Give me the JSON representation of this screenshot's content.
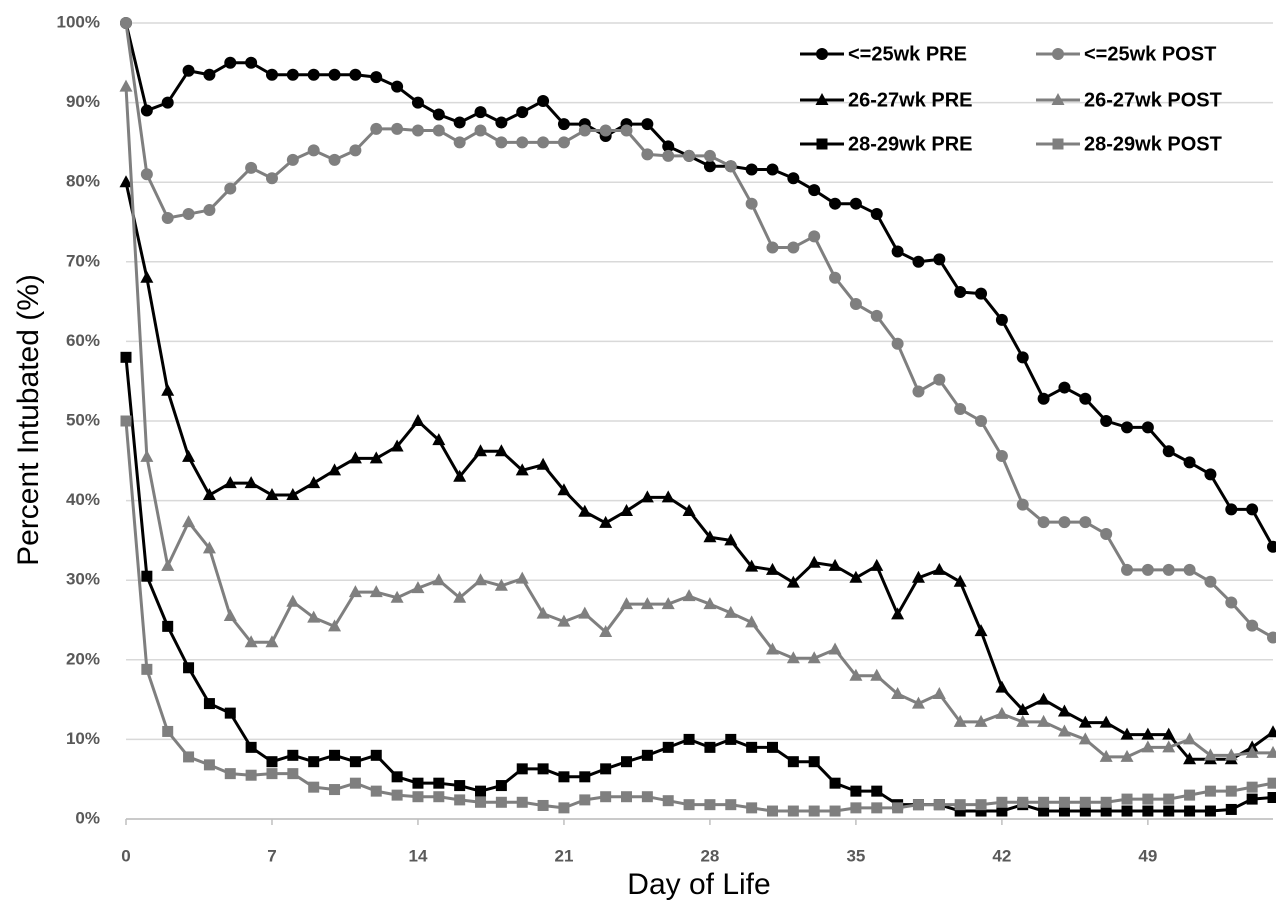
{
  "chart_data": {
    "type": "line",
    "xlabel": "Day of Life",
    "ylabel": "Percent Intubated (%)",
    "x": [
      0,
      1,
      2,
      3,
      4,
      5,
      6,
      7,
      8,
      9,
      10,
      11,
      12,
      13,
      14,
      15,
      16,
      17,
      18,
      19,
      20,
      21,
      22,
      23,
      24,
      25,
      26,
      27,
      28,
      29,
      30,
      31,
      32,
      33,
      34,
      35,
      36,
      37,
      38,
      39,
      40,
      41,
      42,
      43,
      44,
      45,
      46,
      47,
      48,
      49,
      50,
      51,
      52,
      53,
      54,
      55
    ],
    "xlim": [
      0,
      55
    ],
    "xticks": [
      0,
      7,
      14,
      21,
      28,
      35,
      42,
      49
    ],
    "ylim": [
      0,
      100
    ],
    "yticks": [
      {
        "value": 0,
        "label": "0%"
      },
      {
        "value": 10,
        "label": "10%"
      },
      {
        "value": 20,
        "label": "20%"
      },
      {
        "value": 30,
        "label": "30%"
      },
      {
        "value": 40,
        "label": "40%"
      },
      {
        "value": 50,
        "label": "50%"
      },
      {
        "value": 60,
        "label": "60%"
      },
      {
        "value": 70,
        "label": "70%"
      },
      {
        "value": 80,
        "label": "80%"
      },
      {
        "value": 90,
        "label": "90%"
      },
      {
        "value": 100,
        "label": "100%"
      }
    ],
    "grid": true,
    "legend": "upper right",
    "series": [
      {
        "name": "<=25wk PRE",
        "color": "#000000",
        "marker": "circle",
        "values": [
          100,
          89,
          90,
          94,
          93.5,
          95,
          95,
          93.5,
          93.5,
          93.5,
          93.5,
          93.5,
          93.2,
          92,
          90,
          88.5,
          87.5,
          88.8,
          87.5,
          88.8,
          90.2,
          87.3,
          87.3,
          85.8,
          87.3,
          87.3,
          84.5,
          83.3,
          82,
          82,
          81.6,
          81.6,
          80.5,
          79,
          77.3,
          77.3,
          76,
          71.3,
          70,
          70.3,
          66.2,
          66,
          62.7,
          58,
          52.8,
          54.2,
          52.8,
          50,
          49.2,
          49.2,
          46.2,
          44.8,
          43.3,
          38.9,
          38.9,
          34.2
        ]
      },
      {
        "name": "<=25wk POST",
        "color": "#7f7f7f",
        "marker": "circle",
        "values": [
          100,
          81,
          75.5,
          76,
          76.5,
          79.2,
          81.8,
          80.5,
          82.8,
          84,
          82.8,
          84,
          86.7,
          86.7,
          86.5,
          86.5,
          85,
          86.5,
          85,
          85,
          85,
          85,
          86.5,
          86.5,
          86.5,
          83.5,
          83.3,
          83.3,
          83.3,
          82,
          77.3,
          71.8,
          71.8,
          73.2,
          68,
          64.7,
          63.2,
          59.7,
          53.7,
          55.2,
          51.5,
          50,
          45.6,
          39.5,
          37.3,
          37.3,
          37.3,
          35.8,
          31.3,
          31.3,
          31.3,
          31.3,
          29.8,
          27.2,
          24.3,
          22.8
        ]
      },
      {
        "name": "26-27wk PRE",
        "color": "#000000",
        "marker": "triangle",
        "values": [
          80,
          68,
          53.8,
          45.5,
          40.7,
          42.2,
          42.2,
          40.7,
          40.7,
          42.2,
          43.8,
          45.3,
          45.3,
          46.8,
          50,
          47.6,
          43,
          46.2,
          46.2,
          43.8,
          44.5,
          41.3,
          38.6,
          37.2,
          38.7,
          40.4,
          40.4,
          38.7,
          35.4,
          35,
          31.7,
          31.3,
          29.7,
          32.2,
          31.8,
          30.3,
          31.8,
          25.7,
          30.3,
          31.3,
          29.8,
          23.6,
          16.5,
          13.7,
          15,
          13.5,
          12.1,
          12.1,
          10.6,
          10.6,
          10.6,
          7.5,
          7.5,
          7.5,
          9,
          10.9
        ]
      },
      {
        "name": "26-27wk POST",
        "color": "#7f7f7f",
        "marker": "triangle",
        "values": [
          92,
          45.5,
          31.8,
          37.3,
          34,
          25.5,
          22.2,
          22.2,
          27.3,
          25.3,
          24.2,
          28.5,
          28.5,
          27.8,
          29,
          30,
          27.8,
          30,
          29.3,
          30.2,
          25.8,
          24.8,
          25.8,
          23.5,
          27,
          27,
          27,
          28,
          27,
          25.9,
          24.7,
          21.3,
          20.2,
          20.2,
          21.3,
          18,
          18,
          15.7,
          14.5,
          15.7,
          12.2,
          12.2,
          13.2,
          12.2,
          12.2,
          11,
          10,
          7.8,
          7.8,
          9,
          9,
          10,
          8,
          8,
          8.3,
          8.3
        ]
      },
      {
        "name": "28-29wk PRE",
        "color": "#000000",
        "marker": "square",
        "values": [
          58,
          30.5,
          24.2,
          19,
          14.5,
          13.3,
          9,
          7.2,
          8,
          7.2,
          8,
          7.2,
          8,
          5.3,
          4.5,
          4.5,
          4.2,
          3.5,
          4.2,
          6.3,
          6.3,
          5.3,
          5.3,
          6.3,
          7.2,
          8,
          9,
          10,
          9,
          10,
          9,
          9,
          7.2,
          7.2,
          4.5,
          3.5,
          3.5,
          1.8,
          1.8,
          1.8,
          1,
          1,
          1,
          1.8,
          1,
          1,
          1,
          1,
          1,
          1,
          1,
          1,
          1,
          1.2,
          2.5,
          2.7
        ]
      },
      {
        "name": "28-29wk POST",
        "color": "#7f7f7f",
        "marker": "square",
        "values": [
          50,
          18.8,
          11,
          7.8,
          6.8,
          5.7,
          5.5,
          5.7,
          5.7,
          4,
          3.7,
          4.5,
          3.5,
          3,
          2.8,
          2.8,
          2.4,
          2.1,
          2.1,
          2.1,
          1.7,
          1.4,
          2.4,
          2.8,
          2.8,
          2.8,
          2.3,
          1.8,
          1.8,
          1.8,
          1.4,
          1,
          1,
          1,
          1,
          1.4,
          1.4,
          1.4,
          1.8,
          1.8,
          1.8,
          1.8,
          2.1,
          2.1,
          2.1,
          2.1,
          2.1,
          2.1,
          2.5,
          2.5,
          2.5,
          3,
          3.5,
          3.5,
          4,
          4.5
        ]
      }
    ]
  }
}
